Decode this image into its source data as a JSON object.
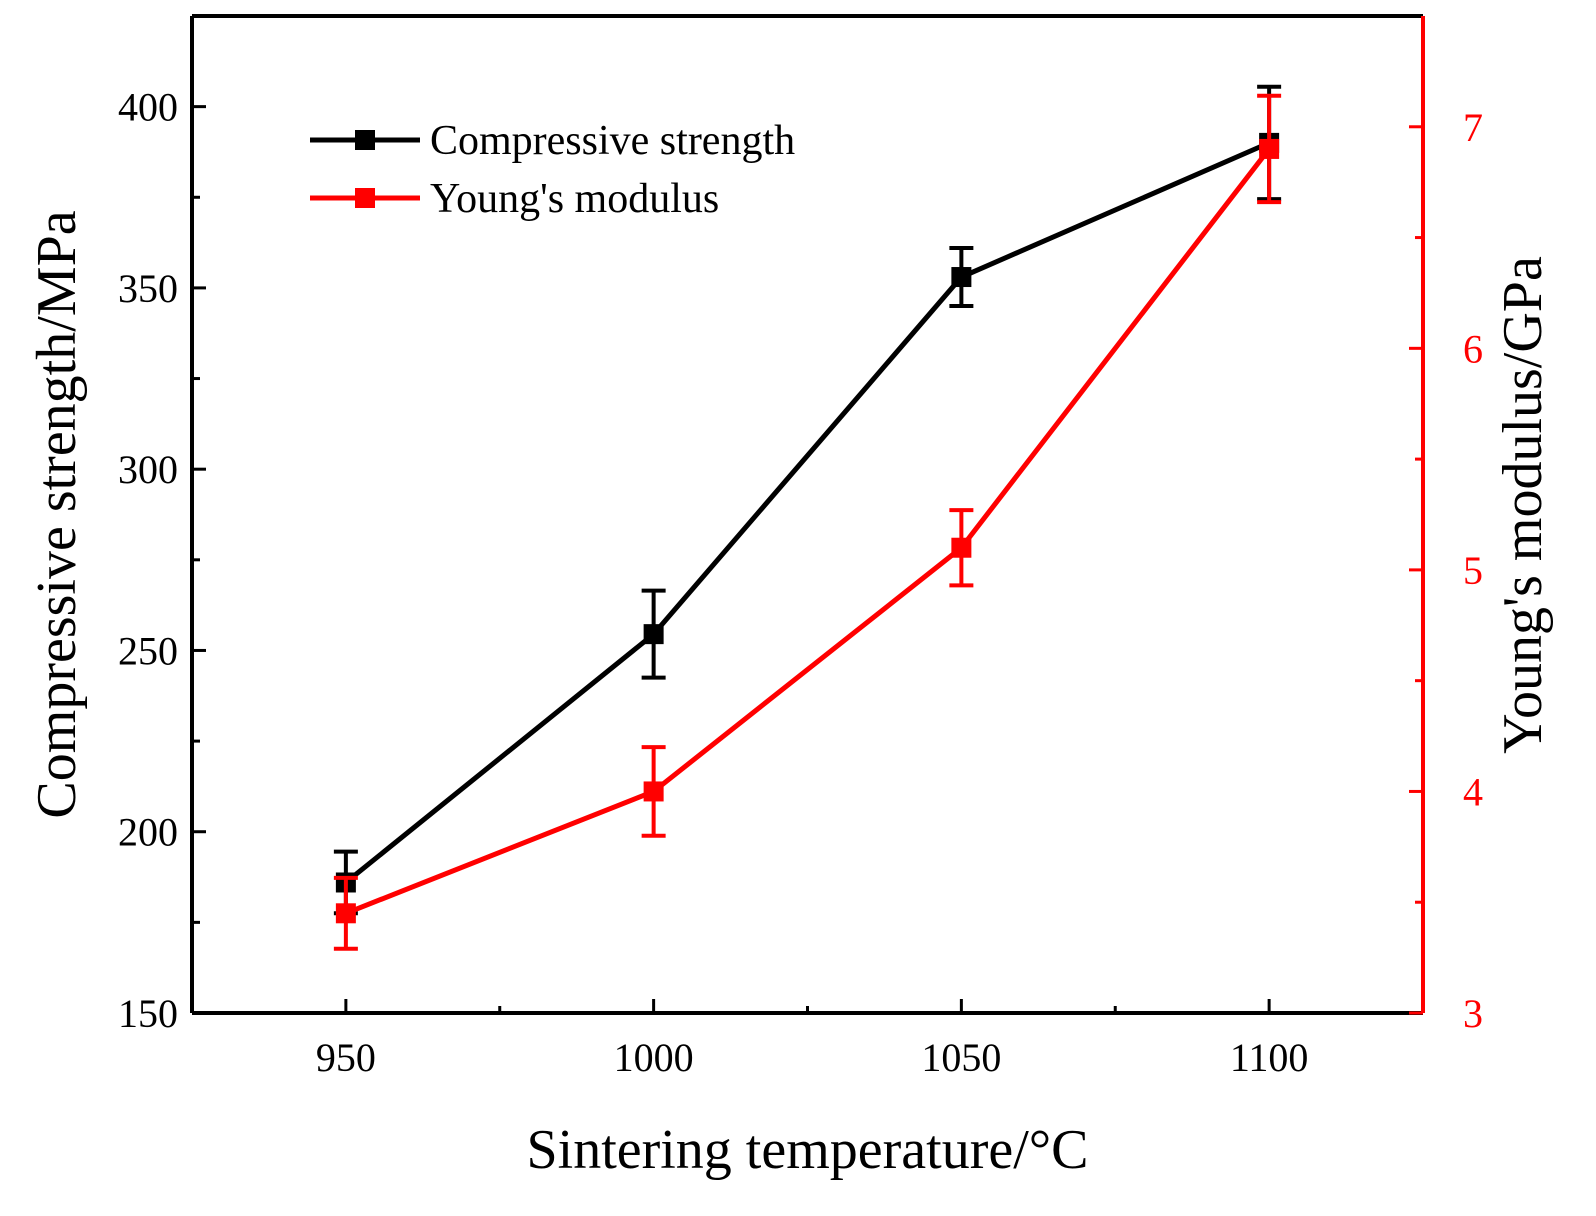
{
  "chart_data": {
    "type": "line",
    "title": "",
    "xlabel": "Sintering temperature/°C",
    "ylabel": "Compressive strength/MPa",
    "y2label": "Young's modulus/GPa",
    "x": [
      950,
      1000,
      1050,
      1100
    ],
    "xlim": [
      925,
      1125
    ],
    "xticks": [
      950,
      1000,
      1050,
      1100
    ],
    "ylim": [
      150,
      425
    ],
    "yticks": [
      150,
      200,
      250,
      300,
      350,
      400
    ],
    "y2lim": [
      3,
      7.5
    ],
    "y2ticks": [
      3,
      4,
      5,
      6,
      7
    ],
    "legend_position": "top-left",
    "colors": {
      "primary": "#000000",
      "secondary": "#ff0000"
    },
    "series": [
      {
        "name": "Compressive strength",
        "axis": "left",
        "color": "#000000",
        "values": [
          186,
          254.5,
          353,
          390
        ],
        "errors": [
          8.5,
          12,
          8,
          15.5
        ]
      },
      {
        "name": "Young's modulus",
        "axis": "right",
        "color": "#ff0000",
        "values": [
          3.45,
          4.0,
          5.1,
          6.9
        ],
        "errors": [
          0.16,
          0.2,
          0.17,
          0.24
        ]
      }
    ]
  }
}
